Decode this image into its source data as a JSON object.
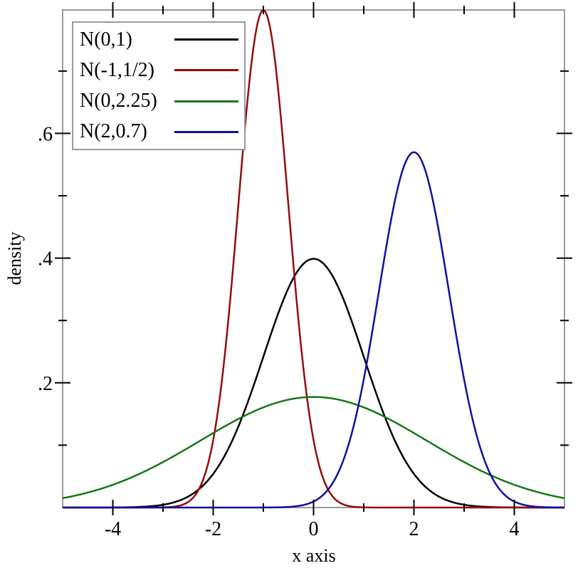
{
  "chart_data": {
    "type": "line",
    "subtype": "gaussian-pdf-curves",
    "title": "",
    "xlabel": "x axis",
    "ylabel": "density",
    "xlim": [
      -5,
      5
    ],
    "ylim": [
      0,
      0.798
    ],
    "grid": false,
    "legend_position": "top-left",
    "x_ticks": {
      "major": [
        {
          "value": -4,
          "label": "-4"
        },
        {
          "value": -2,
          "label": "-2"
        },
        {
          "value": 0,
          "label": "0"
        },
        {
          "value": 2,
          "label": "2"
        },
        {
          "value": 4,
          "label": "4"
        }
      ],
      "minor": [
        -3,
        -1,
        1,
        3
      ]
    },
    "y_ticks": {
      "major": [
        {
          "value": 0.2,
          "label": ".2"
        },
        {
          "value": 0.4,
          "label": ".4"
        },
        {
          "value": 0.6,
          "label": ".6"
        }
      ],
      "minor": [
        0.1,
        0.3,
        0.5,
        0.7
      ]
    },
    "series": [
      {
        "label": "N(0,1)",
        "mean": 0,
        "sd": 1,
        "peak": {
          "x": 0,
          "density": 0.3989
        },
        "color": "#000000",
        "sample_densities": [
          0.0,
          0.00013,
          0.00443,
          0.05399,
          0.24197,
          0.39894,
          0.24197,
          0.05399,
          0.00443,
          0.00013,
          0.0
        ]
      },
      {
        "label": "N(-1,1/2)",
        "mean": -1,
        "sd": 0.5,
        "peak": {
          "x": -1,
          "density": 0.7979
        },
        "color": "#970b0b",
        "sample_densities": [
          0.0,
          0.0,
          0.00027,
          0.10798,
          0.79789,
          0.10798,
          0.00027,
          0.0,
          0.0,
          0.0,
          0.0
        ]
      },
      {
        "label": "N(0,2.25)",
        "mean": 0,
        "sd": 2.25,
        "peak": {
          "x": 0,
          "density": 0.1773
        },
        "color": "#157815",
        "sample_densities": [
          0.01501,
          0.0365,
          0.0729,
          0.11945,
          0.16064,
          0.17731,
          0.16064,
          0.11945,
          0.0729,
          0.0365,
          0.01501
        ]
      },
      {
        "label": "N(2,0.7)",
        "mean": 2,
        "sd": 0.7,
        "peak": {
          "x": 2,
          "density": 0.5699
        },
        "color": "#10109e",
        "sample_densities": [
          0.0,
          0.0,
          0.0,
          0.0,
          6e-05,
          0.00962,
          0.20543,
          0.56992,
          0.20543,
          0.00962,
          6e-05
        ]
      }
    ],
    "sample_x": [
      -5,
      -4,
      -3,
      -2,
      -1,
      0,
      1,
      2,
      3,
      4,
      5
    ],
    "colors": {
      "frame": "#9a9a9a",
      "ticks": "#000000",
      "text": "#000000",
      "background": "#ffffff"
    }
  }
}
